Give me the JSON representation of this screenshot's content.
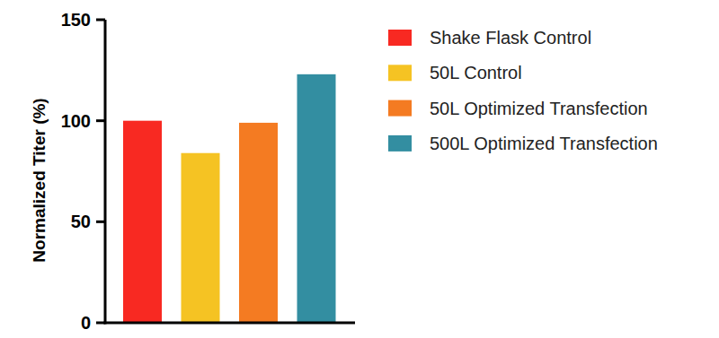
{
  "chart_data": {
    "type": "bar",
    "ylabel": "Normalized Titer (%)",
    "categories": [
      "Shake Flask Control",
      "50L Control",
      "50L Optimized Transfection",
      "500L Optimized Transfection"
    ],
    "values": [
      100,
      84,
      99,
      123
    ],
    "colors": [
      "#f82922",
      "#f5c323",
      "#f47b22",
      "#338ea1"
    ],
    "ylim": [
      0,
      150
    ],
    "yticks": [
      0,
      50,
      100,
      150
    ],
    "grid": false,
    "legend": "right",
    "tick_labels": "y"
  }
}
